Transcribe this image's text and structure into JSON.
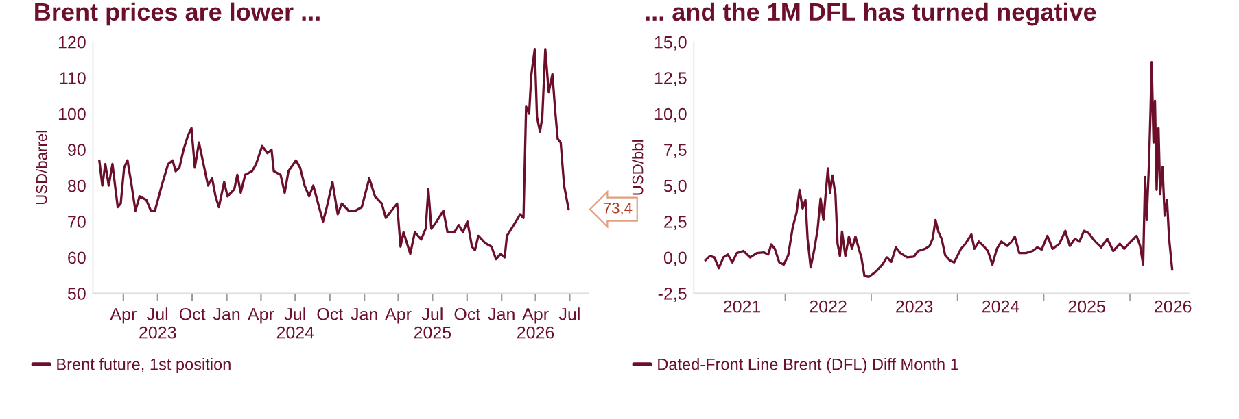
{
  "chart_data": [
    {
      "type": "line",
      "title": "Brent prices are lower ...",
      "ylabel": "USD/barrel",
      "legend": "bottom left",
      "xlim": [
        "2023-01-10",
        "2026-08-20"
      ],
      "ylim": [
        50,
        120
      ],
      "yticks": [
        50,
        60,
        70,
        80,
        90,
        100,
        110,
        120
      ],
      "xticks": [
        {
          "value": "2023-04-01",
          "label": "Apr"
        },
        {
          "value": "2023-07-01",
          "label": "Jul\n2023"
        },
        {
          "value": "2023-10-01",
          "label": "Oct"
        },
        {
          "value": "2024-01-01",
          "label": "Jan"
        },
        {
          "value": "2024-04-01",
          "label": "Apr"
        },
        {
          "value": "2024-07-01",
          "label": "Jul\n2024"
        },
        {
          "value": "2024-10-01",
          "label": "Oct"
        },
        {
          "value": "2025-01-01",
          "label": "Jan"
        },
        {
          "value": "2025-04-01",
          "label": "Apr"
        },
        {
          "value": "2025-07-01",
          "label": "Jul\n2025"
        },
        {
          "value": "2025-10-01",
          "label": "Oct"
        },
        {
          "value": "2026-01-01",
          "label": "Jan"
        },
        {
          "value": "2026-04-01",
          "label": "Apr\n2026"
        },
        {
          "value": "2026-07-01",
          "label": "Jul"
        }
      ],
      "annotations": [
        {
          "text": "73,4",
          "x": "2026-06-28",
          "y": 73.4
        }
      ],
      "series": [
        {
          "name": "Brent future, 1st position",
          "color": "#6b0f2a",
          "x": [
            "2023-01-27",
            "2023-02-04",
            "2023-02-12",
            "2023-02-21",
            "2023-03-03",
            "2023-03-11",
            "2023-03-17",
            "2023-03-25",
            "2023-04-03",
            "2023-04-12",
            "2023-04-23",
            "2023-05-03",
            "2023-05-14",
            "2023-06-01",
            "2023-06-13",
            "2023-06-24",
            "2023-07-12",
            "2023-07-29",
            "2023-08-10",
            "2023-08-18",
            "2023-08-28",
            "2023-09-08",
            "2023-09-20",
            "2023-09-29",
            "2023-10-08",
            "2023-10-19",
            "2023-10-31",
            "2023-11-12",
            "2023-11-23",
            "2023-12-02",
            "2023-12-11",
            "2023-12-25",
            "2024-01-03",
            "2024-01-21",
            "2024-01-29",
            "2024-02-07",
            "2024-02-19",
            "2024-03-08",
            "2024-03-19",
            "2024-04-04",
            "2024-04-18",
            "2024-04-29",
            "2024-05-05",
            "2024-05-23",
            "2024-06-03",
            "2024-06-13",
            "2024-07-03",
            "2024-07-14",
            "2024-07-26",
            "2024-08-07",
            "2024-08-18",
            "2024-09-05",
            "2024-09-13",
            "2024-09-23",
            "2024-10-08",
            "2024-10-22",
            "2024-11-02",
            "2024-11-20",
            "2024-12-08",
            "2024-12-25",
            "2025-01-14",
            "2025-01-29",
            "2025-02-16",
            "2025-02-27",
            "2025-03-14",
            "2025-03-29",
            "2025-04-07",
            "2025-04-15",
            "2025-05-03",
            "2025-05-15",
            "2025-06-01",
            "2025-06-13",
            "2025-06-20",
            "2025-06-28",
            "2025-07-12",
            "2025-07-30",
            "2025-08-10",
            "2025-08-28",
            "2025-09-09",
            "2025-09-20",
            "2025-10-02",
            "2025-10-14",
            "2025-10-22",
            "2025-10-31",
            "2025-11-18",
            "2025-12-05",
            "2025-12-17",
            "2025-12-29",
            "2026-01-09",
            "2026-01-15",
            "2026-01-27",
            "2026-02-08",
            "2026-02-19",
            "2026-02-28",
            "2026-03-07",
            "2026-03-15",
            "2026-03-21",
            "2026-03-30",
            "2026-04-05",
            "2026-04-13",
            "2026-04-19",
            "2026-04-27",
            "2026-05-06",
            "2026-05-16",
            "2026-05-24",
            "2026-05-30",
            "2026-06-07",
            "2026-06-16",
            "2026-06-28"
          ],
          "values": [
            87,
            80,
            86,
            80,
            86,
            79,
            74,
            75,
            85,
            87,
            80,
            73,
            77,
            76,
            73,
            73,
            80,
            86,
            87,
            84,
            85,
            90,
            94,
            96,
            85,
            92,
            86,
            80,
            82,
            77,
            74,
            81,
            77,
            79,
            83,
            78,
            83,
            84,
            86,
            91,
            89,
            90,
            84,
            83,
            78,
            84,
            87,
            85,
            80,
            77,
            80,
            73,
            70,
            74,
            81,
            72,
            75,
            73,
            73,
            74,
            82,
            77,
            75,
            71,
            73,
            75,
            63,
            67,
            61,
            67,
            65,
            68,
            79,
            68,
            70,
            73,
            67,
            67,
            69,
            67,
            70,
            63,
            62,
            66,
            64,
            63,
            59.5,
            61,
            60,
            66,
            68,
            70,
            72,
            71,
            102,
            100,
            111,
            118,
            99,
            95,
            99,
            118,
            106,
            111,
            100,
            93,
            92,
            80,
            73.4
          ]
        }
      ]
    },
    {
      "type": "line",
      "title": "... and the 1M DFL has turned negative",
      "ylabel": "USD/bbl",
      "legend": "bottom left",
      "xlim": [
        "2020-12-10",
        "2026-09-10"
      ],
      "ylim": [
        -2.5,
        15
      ],
      "yticks": [
        {
          "value": -2.5,
          "label": "-2,5"
        },
        {
          "value": 0,
          "label": "0,0"
        },
        {
          "value": 2.5,
          "label": "2,5"
        },
        {
          "value": 5,
          "label": "5,0"
        },
        {
          "value": 7.5,
          "label": "7,5"
        },
        {
          "value": 10,
          "label": "10,0"
        },
        {
          "value": 12.5,
          "label": "12,5"
        },
        {
          "value": 15,
          "label": "15,0"
        }
      ],
      "xticks": [
        {
          "value": "2021-07-02",
          "label": "2021"
        },
        {
          "value": "2022-01-01",
          "label": null
        },
        {
          "value": "2022-07-02",
          "label": "2022"
        },
        {
          "value": "2023-01-01",
          "label": null
        },
        {
          "value": "2023-07-02",
          "label": "2023"
        },
        {
          "value": "2024-01-01",
          "label": null
        },
        {
          "value": "2024-07-02",
          "label": "2024"
        },
        {
          "value": "2025-01-01",
          "label": null
        },
        {
          "value": "2025-07-02",
          "label": "2025"
        },
        {
          "value": "2026-01-01",
          "label": null
        },
        {
          "value": "2026-07-02",
          "label": "2026"
        }
      ],
      "series": [
        {
          "name": "Dated-Front Line Brent (DFL) Diff Month 1",
          "color": "#6b0f2a",
          "x": [
            "2021-01-28",
            "2021-02-16",
            "2021-03-07",
            "2021-03-26",
            "2021-04-14",
            "2021-05-03",
            "2021-05-22",
            "2021-06-10",
            "2021-07-08",
            "2021-08-06",
            "2021-09-03",
            "2021-10-02",
            "2021-10-21",
            "2021-11-03",
            "2021-11-18",
            "2021-12-07",
            "2021-12-26",
            "2022-01-14",
            "2022-02-02",
            "2022-02-18",
            "2022-03-03",
            "2022-03-16",
            "2022-03-28",
            "2022-04-06",
            "2022-04-19",
            "2022-05-05",
            "2022-05-18",
            "2022-05-31",
            "2022-06-12",
            "2022-06-19",
            "2022-07-01",
            "2022-07-10",
            "2022-07-20",
            "2022-08-02",
            "2022-08-11",
            "2022-08-21",
            "2022-08-30",
            "2022-09-13",
            "2022-09-28",
            "2022-10-11",
            "2022-10-26",
            "2022-11-09",
            "2022-11-20",
            "2022-12-03",
            "2022-12-22",
            "2023-01-20",
            "2023-02-17",
            "2023-03-08",
            "2023-03-27",
            "2023-04-15",
            "2023-05-04",
            "2023-06-02",
            "2023-06-30",
            "2023-07-19",
            "2023-08-17",
            "2023-09-05",
            "2023-09-18",
            "2023-09-30",
            "2023-10-13",
            "2023-10-26",
            "2023-11-10",
            "2023-11-29",
            "2023-12-18",
            "2024-01-16",
            "2024-02-04",
            "2024-02-29",
            "2024-03-13",
            "2024-04-01",
            "2024-04-20",
            "2024-05-09",
            "2024-05-28",
            "2024-06-16",
            "2024-07-05",
            "2024-07-30",
            "2024-08-18",
            "2024-08-31",
            "2024-09-19",
            "2024-10-17",
            "2024-11-15",
            "2024-12-04",
            "2024-12-23",
            "2025-01-16",
            "2025-02-07",
            "2025-03-08",
            "2025-04-02",
            "2025-04-21",
            "2025-05-13",
            "2025-06-01",
            "2025-06-20",
            "2025-07-09",
            "2025-08-07",
            "2025-09-01",
            "2025-09-27",
            "2025-10-22",
            "2025-11-19",
            "2025-12-08",
            "2025-12-27",
            "2026-01-29",
            "2026-02-13",
            "2026-02-26",
            "2026-03-06",
            "2026-03-13",
            "2026-03-23",
            "2026-03-29",
            "2026-04-03",
            "2026-04-11",
            "2026-04-17",
            "2026-04-24",
            "2026-05-02",
            "2026-05-09",
            "2026-05-19",
            "2026-05-28",
            "2026-06-07",
            "2026-06-16",
            "2026-06-29"
          ],
          "values": [
            -0.2,
            0.1,
            0,
            -0.75,
            0,
            0.2,
            -0.35,
            0.3,
            0.45,
            0,
            0.3,
            0.35,
            0.2,
            0.9,
            0.6,
            -0.35,
            -0.5,
            0.15,
            2.1,
            3.1,
            4.7,
            3.4,
            4.0,
            1.3,
            -0.7,
            0.6,
            1.9,
            4.1,
            2.6,
            3.9,
            6.2,
            4.5,
            5.7,
            4.4,
            0.95,
            0.1,
            1.8,
            0.1,
            1.45,
            0.6,
            1.45,
            0.6,
            0,
            -1.3,
            -1.35,
            -1.0,
            -0.5,
            0,
            -0.3,
            0.7,
            0.3,
            0,
            0.05,
            0.45,
            0.6,
            0.8,
            1.3,
            2.6,
            1.75,
            1.3,
            0.15,
            -0.2,
            -0.35,
            0.6,
            0.95,
            1.6,
            0.6,
            1.1,
            0.8,
            0.45,
            -0.5,
            0.6,
            1.1,
            0.8,
            1.1,
            1.45,
            0.3,
            0.3,
            0.45,
            0.7,
            0.55,
            1.5,
            0.6,
            0.95,
            1.85,
            0.8,
            1.3,
            1.1,
            1.85,
            1.7,
            1.1,
            0.7,
            1.3,
            0.45,
            0.95,
            0.6,
            0.95,
            1.5,
            0.8,
            -0.5,
            5.6,
            2.6,
            6.7,
            10.1,
            13.6,
            8.0,
            10.9,
            4.7,
            9.0,
            4.4,
            6.3,
            2.9,
            4.0,
            1.3,
            -0.85
          ]
        }
      ]
    }
  ]
}
